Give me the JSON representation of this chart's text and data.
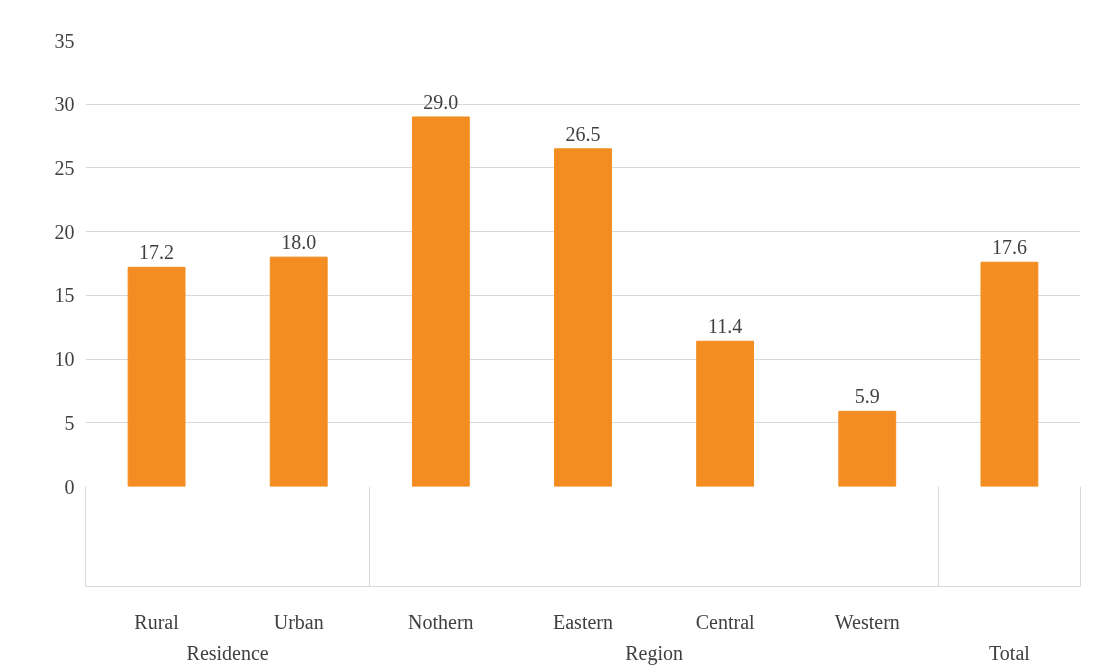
{
  "chart_data": {
    "type": "bar",
    "categories": [
      "Rural",
      "Urban",
      "Nothern",
      "Eastern",
      "Central",
      "Western",
      null
    ],
    "values": [
      17.2,
      18.0,
      29.0,
      26.5,
      11.4,
      5.9,
      17.6
    ],
    "value_labels": [
      "17.2",
      "18.0",
      "29.0",
      "26.5",
      "11.4",
      "5.9",
      "17.6"
    ],
    "color": "#f48d21",
    "ylim": [
      0,
      35
    ],
    "yticks": [
      0,
      5,
      10,
      15,
      20,
      25,
      30,
      35
    ],
    "grid": "y",
    "annotations": [
      "Residence",
      "Region",
      "Total"
    ]
  }
}
